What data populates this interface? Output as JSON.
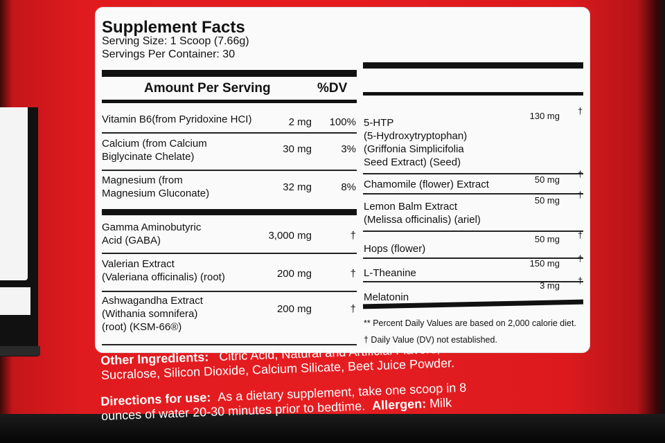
{
  "panel": {
    "title": "Supplement Facts",
    "serving_size": "Serving Size: 1 Scoop (7.66g)",
    "servings_per_container": "Servings Per Container: 30",
    "header_amount": "Amount Per Serving",
    "header_dv": "%DV"
  },
  "left_rows": [
    {
      "name": "Vitamin B6(from Pyridoxine HCI)",
      "amount": "2 mg",
      "dv": "100%"
    },
    {
      "name_line1": "Calcium (from Calcium",
      "name_line2": "Biglycinate Chelate)",
      "amount": "30 mg",
      "dv": "3%"
    },
    {
      "name_line1": "Magnesium (from",
      "name_line2": "Magnesium Gluconate)",
      "amount": "32 mg",
      "dv": "8%"
    },
    {
      "name_line1": "Gamma Aminobutyric",
      "name_line2": "Acid (GABA)",
      "amount": "3,000 mg",
      "dv": "†"
    },
    {
      "name_line1": "Valerian Extract",
      "name_line2": "(Valeriana officinalis) (root)",
      "amount": "200 mg",
      "dv": "†"
    },
    {
      "name_line1": "Ashwagandha Extract",
      "name_line2": "(Withania somnifera)",
      "name_line3": "(root) (KSM-66®)",
      "amount": "200 mg",
      "dv": "†"
    }
  ],
  "right_rows": [
    {
      "name_line1": "5-HTP",
      "name_line2": "(5-Hydroxytryptophan)",
      "name_line3": "(Griffonia Simplicifolia",
      "name_line4": "Seed Extract) (Seed)",
      "amount": "130 mg",
      "dv": "†"
    },
    {
      "name": "Chamomile (flower) Extract",
      "amount": "50 mg",
      "dv": "†"
    },
    {
      "name_line1": "Lemon Balm Extract",
      "name_line2": "(Melissa officinalis) (ariel)",
      "amount": "50 mg",
      "dv": "†"
    },
    {
      "name": "Hops (flower)",
      "amount": "50 mg",
      "dv": "†"
    },
    {
      "name": "L-Theanine",
      "amount": "150 mg",
      "dv": "†"
    },
    {
      "name": "Melatonin",
      "amount": "3 mg",
      "dv": "†"
    }
  ],
  "footnotes": {
    "percent_note": "** Percent Daily Values are based on 2,000 calorie diet.",
    "dagger_note": "† Daily Value (DV) not established."
  },
  "other": {
    "ingredients_label": "Other Ingredients:",
    "ingredients_line1": "Citric Acid, Natural and Artificial Flavors,",
    "ingredients_line2": "Sucralose, Silicon Dioxide, Calcium Silicate, Beet Juice Powder.",
    "directions_label": "Directions for use:",
    "directions_line1": "As a dietary supplement, take one scoop in 8",
    "directions_line2": "ounces of water 20-30 minutes prior to bedtime.",
    "allergen_label": "Allergen:",
    "allergen_value": "Milk"
  },
  "colors": {
    "container_red": "#e01b1f",
    "label_white": "#fafafa",
    "text_black": "#111111"
  }
}
